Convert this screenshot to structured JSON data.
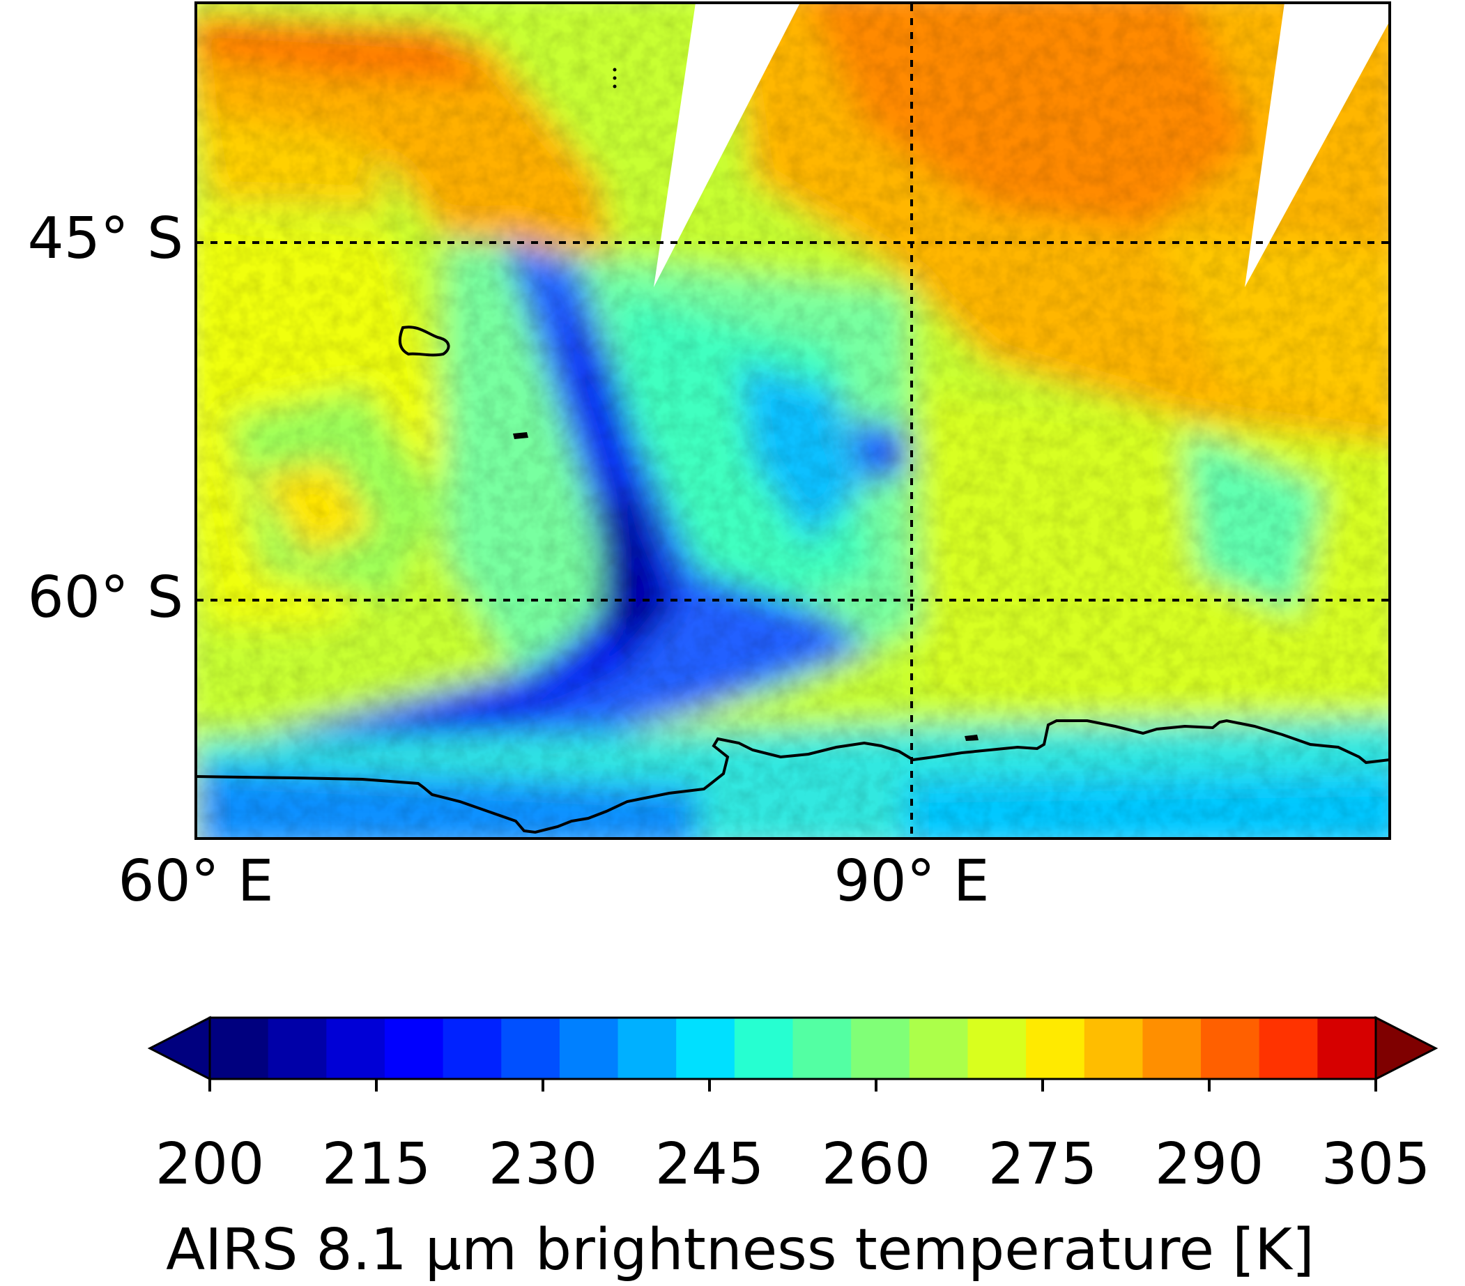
{
  "map": {
    "lat_labels": [
      "45° S",
      "60° S"
    ],
    "lon_labels": [
      "60° E",
      "90° E"
    ],
    "gridline_style": "dashed black"
  },
  "colorbar": {
    "ticks": [
      "200",
      "215",
      "230",
      "245",
      "260",
      "275",
      "290",
      "305"
    ],
    "label": "AIRS 8.1 μm brightness temperature [K]",
    "extend": "both",
    "colors": [
      "#00007f",
      "#0000a8",
      "#0000d6",
      "#0000ff",
      "#0022ff",
      "#0050ff",
      "#0080ff",
      "#00b0ff",
      "#00e0ff",
      "#26ffd1",
      "#53ffa3",
      "#80ff77",
      "#acff4a",
      "#d9ff1e",
      "#ffea00",
      "#ffbd00",
      "#ff8f00",
      "#ff6000",
      "#ff3300",
      "#d60000"
    ],
    "under_color": "#00007f",
    "over_color": "#7f0000"
  },
  "chart_data": {
    "type": "heatmap",
    "title": "",
    "xlabel": "",
    "ylabel": "",
    "variable": "AIRS 8.1 μm brightness temperature",
    "units": "K",
    "color_range": [
      200,
      305
    ],
    "lon_gridlines_deg_east": [
      60,
      90
    ],
    "lat_gridlines_deg_south": [
      45,
      60
    ],
    "features": [
      {
        "name": "cold band",
        "value_K": 215,
        "description": "curved band of low brightness temperature"
      },
      {
        "name": "warm region north-east",
        "value_K": 280
      },
      {
        "name": "warm region north-west",
        "value_K": 275
      },
      {
        "name": "swath gaps",
        "value": "no data (white)"
      }
    ],
    "coastline": "Antarctic coast along southern edge",
    "colormap": "jet"
  }
}
